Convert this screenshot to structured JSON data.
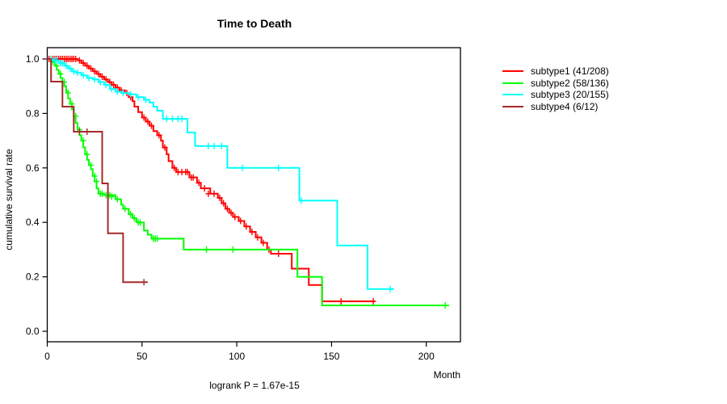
{
  "chart_data": {
    "type": "line",
    "chart_style": "kaplan-meier-step",
    "title": "Time to Death",
    "xlabel": "Month",
    "ylabel": "cumulative survival rate",
    "annotation": "logrank P = 1.67e-15",
    "xlim": [
      0,
      218
    ],
    "ylim": [
      0,
      1.04
    ],
    "x_ticks": [
      0,
      50,
      100,
      150,
      200
    ],
    "y_ticks": [
      0.0,
      0.2,
      0.4,
      0.6,
      0.8,
      1.0
    ],
    "grid": false,
    "legend_position": "right",
    "series": [
      {
        "name": "subtype1 (41/208)",
        "color": "#ff0000",
        "steps": [
          [
            0,
            1.0
          ],
          [
            16,
            0.995
          ],
          [
            18,
            0.985
          ],
          [
            20,
            0.975
          ],
          [
            22,
            0.965
          ],
          [
            24,
            0.955
          ],
          [
            26,
            0.945
          ],
          [
            28,
            0.935
          ],
          [
            30,
            0.925
          ],
          [
            32,
            0.915
          ],
          [
            34,
            0.905
          ],
          [
            36,
            0.895
          ],
          [
            38,
            0.885
          ],
          [
            41,
            0.875
          ],
          [
            43,
            0.86
          ],
          [
            45,
            0.845
          ],
          [
            46,
            0.825
          ],
          [
            48,
            0.805
          ],
          [
            50,
            0.785
          ],
          [
            52,
            0.77
          ],
          [
            54,
            0.755
          ],
          [
            56,
            0.735
          ],
          [
            58,
            0.72
          ],
          [
            60,
            0.7
          ],
          [
            61,
            0.675
          ],
          [
            63,
            0.65
          ],
          [
            64,
            0.625
          ],
          [
            66,
            0.6
          ],
          [
            68,
            0.585
          ],
          [
            75,
            0.565
          ],
          [
            79,
            0.545
          ],
          [
            81,
            0.525
          ],
          [
            86,
            0.505
          ],
          [
            90,
            0.49
          ],
          [
            92,
            0.47
          ],
          [
            94,
            0.45
          ],
          [
            96,
            0.435
          ],
          [
            98,
            0.42
          ],
          [
            101,
            0.405
          ],
          [
            104,
            0.385
          ],
          [
            107,
            0.365
          ],
          [
            110,
            0.345
          ],
          [
            113,
            0.325
          ],
          [
            116,
            0.3
          ],
          [
            118,
            0.285
          ],
          [
            129,
            0.23
          ],
          [
            138,
            0.17
          ],
          [
            145,
            0.11
          ],
          [
            173,
            0.11
          ]
        ],
        "censors": [
          [
            1,
            1
          ],
          [
            2,
            1
          ],
          [
            3,
            1
          ],
          [
            4,
            1
          ],
          [
            5,
            1
          ],
          [
            6,
            1
          ],
          [
            7,
            1
          ],
          [
            8,
            1
          ],
          [
            9,
            1
          ],
          [
            10,
            1
          ],
          [
            11,
            1
          ],
          [
            12,
            1
          ],
          [
            13,
            1
          ],
          [
            14,
            1
          ],
          [
            15,
            1
          ],
          [
            17,
            0.995
          ],
          [
            19,
            0.985
          ],
          [
            21,
            0.975
          ],
          [
            23,
            0.965
          ],
          [
            25,
            0.955
          ],
          [
            27,
            0.945
          ],
          [
            29,
            0.935
          ],
          [
            31,
            0.925
          ],
          [
            33,
            0.915
          ],
          [
            35,
            0.905
          ],
          [
            37,
            0.895
          ],
          [
            39,
            0.885
          ],
          [
            42,
            0.875
          ],
          [
            44,
            0.86
          ],
          [
            51,
            0.785
          ],
          [
            53,
            0.77
          ],
          [
            55,
            0.755
          ],
          [
            59,
            0.72
          ],
          [
            62,
            0.675
          ],
          [
            67,
            0.6
          ],
          [
            69,
            0.585
          ],
          [
            71,
            0.585
          ],
          [
            73,
            0.585
          ],
          [
            74,
            0.585
          ],
          [
            76,
            0.565
          ],
          [
            77,
            0.565
          ],
          [
            80,
            0.545
          ],
          [
            83,
            0.525
          ],
          [
            85,
            0.505
          ],
          [
            88,
            0.505
          ],
          [
            91,
            0.49
          ],
          [
            93,
            0.47
          ],
          [
            95,
            0.45
          ],
          [
            97,
            0.435
          ],
          [
            99,
            0.42
          ],
          [
            102,
            0.405
          ],
          [
            105,
            0.385
          ],
          [
            108,
            0.365
          ],
          [
            111,
            0.345
          ],
          [
            114,
            0.325
          ],
          [
            117,
            0.3
          ],
          [
            122,
            0.285
          ],
          [
            155,
            0.11
          ],
          [
            172,
            0.11
          ]
        ]
      },
      {
        "name": "subtype2 (58/136)",
        "color": "#00ff00",
        "steps": [
          [
            0,
            1.0
          ],
          [
            2,
            0.99
          ],
          [
            4,
            0.975
          ],
          [
            5,
            0.96
          ],
          [
            6,
            0.945
          ],
          [
            7,
            0.93
          ],
          [
            8,
            0.915
          ],
          [
            9,
            0.9
          ],
          [
            10,
            0.88
          ],
          [
            11,
            0.855
          ],
          [
            12,
            0.835
          ],
          [
            13,
            0.815
          ],
          [
            14,
            0.79
          ],
          [
            15,
            0.765
          ],
          [
            16,
            0.74
          ],
          [
            17,
            0.72
          ],
          [
            18,
            0.7
          ],
          [
            19,
            0.675
          ],
          [
            20,
            0.65
          ],
          [
            21,
            0.63
          ],
          [
            22,
            0.61
          ],
          [
            23,
            0.595
          ],
          [
            24,
            0.57
          ],
          [
            25,
            0.55
          ],
          [
            26,
            0.525
          ],
          [
            27,
            0.505
          ],
          [
            30,
            0.5
          ],
          [
            36,
            0.485
          ],
          [
            39,
            0.465
          ],
          [
            40,
            0.45
          ],
          [
            43,
            0.43
          ],
          [
            45,
            0.415
          ],
          [
            47,
            0.4
          ],
          [
            51,
            0.37
          ],
          [
            53,
            0.355
          ],
          [
            55,
            0.34
          ],
          [
            72,
            0.3
          ],
          [
            132,
            0.2
          ],
          [
            145,
            0.095
          ],
          [
            212,
            0.095
          ]
        ],
        "censors": [
          [
            3,
            0.99
          ],
          [
            5,
            0.975
          ],
          [
            7,
            0.945
          ],
          [
            9,
            0.915
          ],
          [
            11,
            0.875
          ],
          [
            13,
            0.835
          ],
          [
            15,
            0.79
          ],
          [
            17,
            0.74
          ],
          [
            19,
            0.7
          ],
          [
            21,
            0.65
          ],
          [
            23,
            0.61
          ],
          [
            25,
            0.57
          ],
          [
            26,
            0.55
          ],
          [
            28,
            0.505
          ],
          [
            29,
            0.505
          ],
          [
            31,
            0.5
          ],
          [
            32,
            0.5
          ],
          [
            33,
            0.5
          ],
          [
            34,
            0.495
          ],
          [
            37,
            0.485
          ],
          [
            41,
            0.45
          ],
          [
            44,
            0.43
          ],
          [
            46,
            0.415
          ],
          [
            48,
            0.4
          ],
          [
            49,
            0.4
          ],
          [
            56,
            0.34
          ],
          [
            57,
            0.34
          ],
          [
            58,
            0.34
          ],
          [
            84,
            0.3
          ],
          [
            98,
            0.3
          ],
          [
            210,
            0.095
          ]
        ]
      },
      {
        "name": "subtype3 (20/155)",
        "color": "#00ffff",
        "steps": [
          [
            0,
            1.0
          ],
          [
            3,
            0.995
          ],
          [
            6,
            0.985
          ],
          [
            9,
            0.975
          ],
          [
            11,
            0.965
          ],
          [
            13,
            0.955
          ],
          [
            15,
            0.95
          ],
          [
            18,
            0.94
          ],
          [
            21,
            0.93
          ],
          [
            24,
            0.925
          ],
          [
            27,
            0.915
          ],
          [
            30,
            0.905
          ],
          [
            33,
            0.89
          ],
          [
            36,
            0.88
          ],
          [
            39,
            0.875
          ],
          [
            43,
            0.87
          ],
          [
            47,
            0.86
          ],
          [
            51,
            0.85
          ],
          [
            54,
            0.84
          ],
          [
            56,
            0.825
          ],
          [
            58,
            0.81
          ],
          [
            61,
            0.78
          ],
          [
            74,
            0.73
          ],
          [
            78,
            0.68
          ],
          [
            95,
            0.6
          ],
          [
            133,
            0.48
          ],
          [
            153,
            0.315
          ],
          [
            169,
            0.155
          ],
          [
            183,
            0.155
          ]
        ],
        "censors": [
          [
            2,
            1
          ],
          [
            4,
            0.995
          ],
          [
            5,
            0.995
          ],
          [
            7,
            0.985
          ],
          [
            8,
            0.985
          ],
          [
            10,
            0.975
          ],
          [
            12,
            0.965
          ],
          [
            14,
            0.955
          ],
          [
            16,
            0.95
          ],
          [
            19,
            0.94
          ],
          [
            22,
            0.93
          ],
          [
            25,
            0.925
          ],
          [
            28,
            0.915
          ],
          [
            31,
            0.905
          ],
          [
            34,
            0.89
          ],
          [
            37,
            0.88
          ],
          [
            40,
            0.875
          ],
          [
            44,
            0.87
          ],
          [
            48,
            0.86
          ],
          [
            52,
            0.85
          ],
          [
            63,
            0.78
          ],
          [
            66,
            0.78
          ],
          [
            69,
            0.78
          ],
          [
            71,
            0.78
          ],
          [
            85,
            0.68
          ],
          [
            88,
            0.68
          ],
          [
            92,
            0.68
          ],
          [
            103,
            0.6
          ],
          [
            122,
            0.6
          ],
          [
            134,
            0.48
          ],
          [
            181,
            0.155
          ]
        ]
      },
      {
        "name": "subtype4 (6/12)",
        "color": "#a52a2a",
        "steps": [
          [
            0,
            1.0
          ],
          [
            2,
            0.917
          ],
          [
            8,
            0.825
          ],
          [
            14,
            0.733
          ],
          [
            29,
            0.543
          ],
          [
            32,
            0.36
          ],
          [
            40,
            0.18
          ],
          [
            53,
            0.18
          ]
        ],
        "censors": [
          [
            17,
            0.733
          ],
          [
            21,
            0.733
          ],
          [
            51,
            0.18
          ]
        ]
      }
    ]
  }
}
